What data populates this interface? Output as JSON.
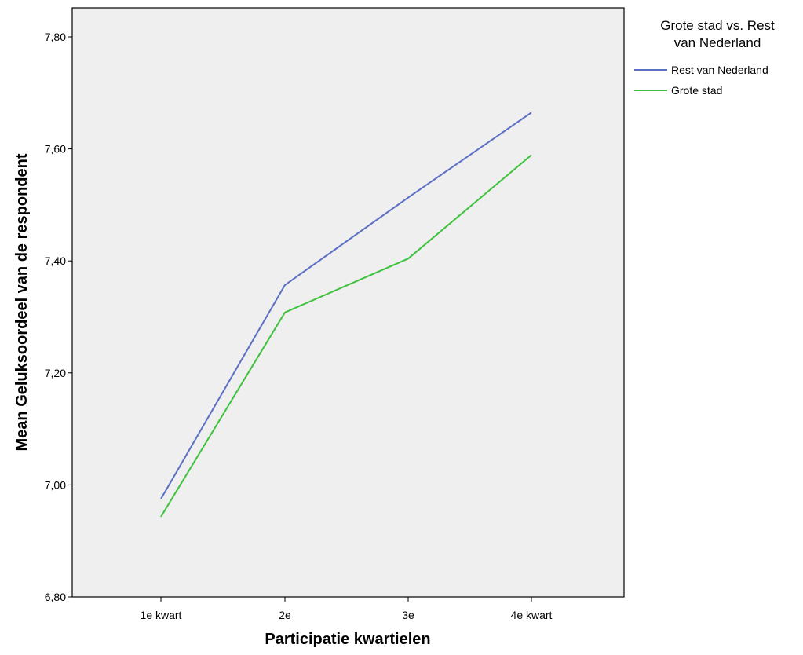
{
  "chart_data": {
    "type": "line",
    "title": "",
    "xlabel": "Participatie kwartielen",
    "ylabel": "Mean Geluksoordeel van de respondent",
    "categories": [
      "1e kwart",
      "2e",
      "3e",
      "4e kwart"
    ],
    "ylim": [
      6.8,
      7.8
    ],
    "yticks": [
      6.8,
      7.0,
      7.2,
      7.4,
      7.6,
      7.8
    ],
    "ytick_labels": [
      "6,80",
      "7,00",
      "7,20",
      "7,40",
      "7,60",
      "7,80"
    ],
    "grid": false,
    "plot_background": "#efefef",
    "legend": {
      "title_lines": [
        "Grote stad vs. Rest",
        "van Nederland"
      ],
      "placement": "right"
    },
    "series": [
      {
        "name": "Rest van Nederland",
        "color": "#5b6fc4",
        "values": [
          6.975,
          7.357,
          7.513,
          7.665
        ]
      },
      {
        "name": "Grote stad",
        "color": "#3ec23e",
        "values": [
          6.943,
          7.308,
          7.404,
          7.589
        ]
      }
    ]
  }
}
